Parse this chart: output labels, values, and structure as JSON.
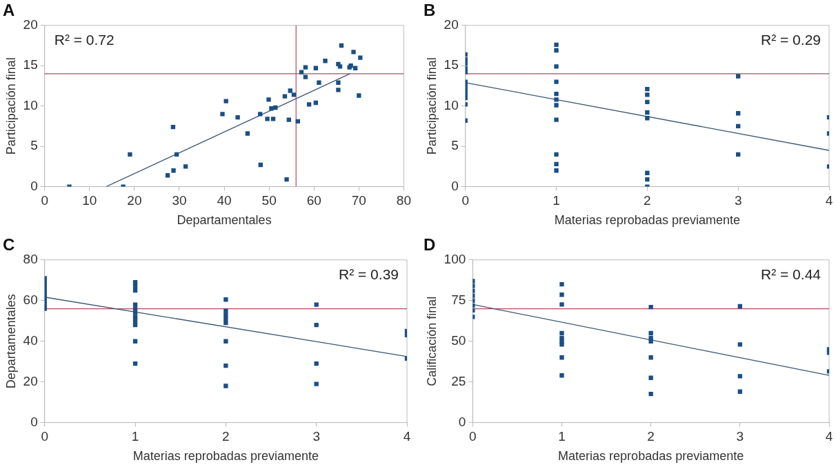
{
  "chart_data": [
    {
      "type": "scatter",
      "title": "A",
      "xlabel": "Departamentales",
      "ylabel": "Participación final",
      "xlim": [
        0,
        80
      ],
      "xticks": [
        0,
        10,
        20,
        30,
        40,
        50,
        60,
        70,
        80
      ],
      "ylim": [
        0,
        20
      ],
      "yticks": [
        0,
        5,
        10,
        15,
        20
      ],
      "grid": false,
      "marker": "square",
      "annotations": [
        "R² = 0.72"
      ],
      "ref_lines": [
        {
          "axis": "y",
          "value": 14,
          "color": "#b04a5e"
        },
        {
          "axis": "x",
          "value": 56,
          "color": "#b04a5e"
        }
      ],
      "series": [
        {
          "color": "#1a4f85",
          "x": [
            5.5,
            17.5,
            19,
            28.6,
            29.4,
            27.4,
            28.7,
            31.4,
            39.6,
            40.4,
            43,
            45.2,
            48,
            48.1,
            49.9,
            49.6,
            50.9,
            50.5,
            51.4,
            53.5,
            54.7,
            55.5,
            54.4,
            53.9,
            56.4,
            57.2,
            58.1,
            58.1,
            58.9,
            60.4,
            60.4,
            61.1,
            62.5,
            65.4,
            65.8,
            65.4,
            65.4,
            66.1,
            67.9,
            68.2,
            69.2,
            68.8,
            70.3,
            70
          ],
          "values": [
            0,
            0,
            4,
            7.4,
            4,
            1.4,
            2,
            2.5,
            9,
            10.6,
            8.6,
            6.6,
            9,
            2.7,
            10.8,
            8.4,
            8.4,
            9.7,
            9.8,
            11.2,
            11.9,
            11.4,
            8.3,
            0.9,
            8.1,
            14.2,
            14.8,
            13.6,
            10.2,
            10.4,
            14.7,
            12.9,
            15.6,
            15.2,
            14.9,
            12.9,
            12,
            17.5,
            14.8,
            15,
            14.7,
            16.7,
            16,
            11.3
          ]
        },
        {
          "type": "line",
          "marker": "none",
          "line_style": "solid",
          "color": "#3d5670",
          "x": [
            13.7,
            68
          ],
          "values": [
            0,
            14
          ]
        }
      ]
    },
    {
      "type": "scatter",
      "title": "B",
      "xlabel": "Materias reprobadas previamente",
      "ylabel": "Participación final",
      "xlim": [
        0,
        4
      ],
      "xticks": [
        0,
        1,
        2,
        3,
        4
      ],
      "ylim": [
        0,
        20
      ],
      "yticks": [
        0,
        5,
        10,
        15,
        20
      ],
      "grid": false,
      "marker": "square",
      "annotations": [
        "R² = 0.29"
      ],
      "ref_lines": [
        {
          "axis": "y",
          "value": 14,
          "color": "#b04a5e"
        }
      ],
      "series": [
        {
          "color": "#1a4f85",
          "x": [
            0,
            0,
            0,
            0,
            0,
            0,
            0,
            0,
            0,
            0,
            0,
            0,
            1,
            1,
            1,
            1,
            1,
            1,
            1,
            1,
            1,
            1,
            1,
            2,
            2,
            2,
            2,
            2,
            2,
            2,
            2,
            3,
            3,
            3,
            3,
            4,
            4,
            4
          ],
          "values": [
            16.4,
            15.8,
            15.3,
            14.7,
            14.2,
            13,
            12.5,
            12,
            11.5,
            11,
            10.2,
            8.2,
            17.6,
            16.9,
            14.9,
            13,
            11.5,
            10.8,
            10.1,
            8.3,
            4,
            2.8,
            2,
            12.1,
            11.4,
            10.5,
            9.2,
            8.5,
            1.7,
            0.9,
            0,
            13.7,
            9.1,
            7.5,
            4,
            8.6,
            6.6,
            2.5
          ]
        },
        {
          "type": "line",
          "marker": "none",
          "line_style": "solid",
          "color": "#3d5670",
          "x": [
            0,
            4
          ],
          "values": [
            12.9,
            4.5
          ]
        }
      ]
    },
    {
      "type": "scatter",
      "title": "C",
      "xlabel": "Materias reprobadas previamente",
      "ylabel": "Departamentales",
      "xlim": [
        0,
        4
      ],
      "xticks": [
        0,
        1,
        2,
        3,
        4
      ],
      "ylim": [
        0,
        80
      ],
      "yticks": [
        0,
        20,
        40,
        60,
        80
      ],
      "grid": false,
      "marker": "square",
      "annotations": [
        "R² = 0.39"
      ],
      "ref_lines": [
        {
          "axis": "y",
          "value": 56,
          "color": "#b04a5e"
        }
      ],
      "series": [
        {
          "color": "#1a4f85",
          "x": [
            0,
            0,
            0,
            0,
            0,
            0,
            0,
            0,
            0,
            1,
            1,
            1,
            1,
            1,
            1,
            1,
            1,
            1,
            1,
            1,
            2,
            2,
            2,
            2,
            2,
            2,
            2,
            2,
            3,
            3,
            3,
            3,
            4,
            4,
            4
          ],
          "values": [
            71,
            69,
            67,
            65,
            63,
            61,
            59,
            57,
            56,
            69,
            67,
            65,
            58,
            56,
            54,
            52,
            50,
            48,
            40,
            29,
            60.5,
            55,
            53,
            51,
            49,
            40,
            28,
            18,
            58,
            48,
            29,
            19,
            45,
            43,
            31.5
          ]
        },
        {
          "type": "line",
          "marker": "none",
          "line_style": "solid",
          "color": "#3d5670",
          "x": [
            0,
            4
          ],
          "values": [
            61.7,
            32.5
          ]
        }
      ]
    },
    {
      "type": "scatter",
      "title": "D",
      "xlabel": "Materias reprobadas previamente",
      "ylabel": "Calificación final",
      "xlim": [
        0,
        4
      ],
      "xticks": [
        0,
        1,
        2,
        3,
        4
      ],
      "ylim": [
        0,
        100
      ],
      "yticks": [
        0,
        25,
        50,
        75,
        100
      ],
      "grid": false,
      "marker": "square",
      "annotations": [
        "R² = 0.44"
      ],
      "ref_lines": [
        {
          "axis": "y",
          "value": 70,
          "color": "#b04a5e"
        }
      ],
      "series": [
        {
          "color": "#1a4f85",
          "x": [
            0,
            0,
            0,
            0,
            0,
            0,
            0,
            0,
            1,
            1,
            1,
            1,
            1,
            1,
            1,
            1,
            1,
            2,
            2,
            2,
            2,
            2,
            2,
            2,
            3,
            3,
            3,
            3,
            4,
            4,
            4
          ],
          "values": [
            87,
            84,
            81,
            78,
            75,
            72,
            69,
            65,
            85,
            78.6,
            72.6,
            55,
            52,
            50,
            48,
            40,
            29,
            71,
            55,
            52,
            50,
            40,
            27.5,
            17.6,
            71.5,
            48,
            28.5,
            19,
            45,
            43,
            31.5
          ]
        },
        {
          "type": "line",
          "marker": "none",
          "line_style": "solid",
          "color": "#3d5670",
          "x": [
            0,
            4
          ],
          "values": [
            72.6,
            29
          ]
        }
      ]
    }
  ]
}
